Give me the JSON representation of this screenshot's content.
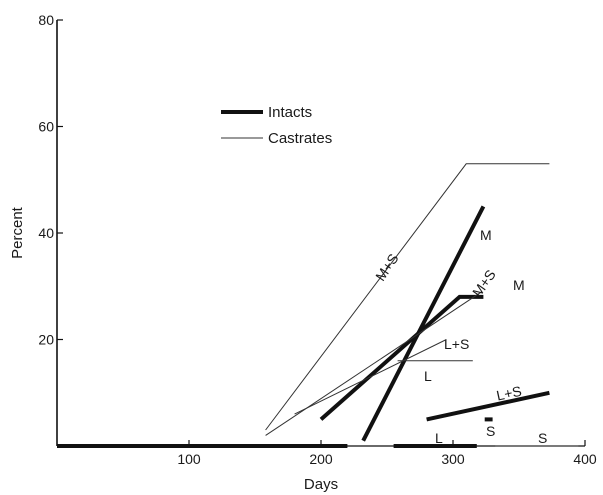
{
  "chart_data": {
    "type": "line",
    "title": "",
    "xlabel": "Days",
    "ylabel": "Percent",
    "xlim": [
      0,
      400
    ],
    "ylim": [
      0,
      80
    ],
    "x_ticks": [
      100,
      200,
      300,
      400
    ],
    "y_ticks": [
      20,
      40,
      60,
      80
    ],
    "grid": false,
    "legend": {
      "placement": "upper-center",
      "entries": [
        {
          "name": "Intacts",
          "style": "thick"
        },
        {
          "name": "Castrates",
          "style": "thin"
        }
      ]
    },
    "series": [
      {
        "group": "Intacts",
        "label": "M",
        "points": [
          [
            232,
            1
          ],
          [
            323,
            45
          ]
        ]
      },
      {
        "group": "Intacts",
        "label": "M+S",
        "points": [
          [
            200,
            5
          ],
          [
            305,
            28
          ],
          [
            323,
            28
          ]
        ]
      },
      {
        "group": "Intacts",
        "label": "L+S",
        "points": [
          [
            280,
            5
          ],
          [
            373,
            10
          ]
        ]
      },
      {
        "group": "Intacts",
        "label": "L",
        "points": [
          [
            255,
            0
          ],
          [
            318,
            0
          ]
        ]
      },
      {
        "group": "Intacts",
        "label": "S",
        "points": [
          [
            324,
            5
          ],
          [
            330,
            5
          ]
        ]
      },
      {
        "group": "Intacts",
        "label": "",
        "points": [
          [
            0,
            0
          ],
          [
            220,
            0
          ]
        ]
      },
      {
        "group": "Castrates",
        "label": "M+S",
        "points": [
          [
            158,
            3
          ],
          [
            310,
            53
          ],
          [
            373,
            53
          ]
        ]
      },
      {
        "group": "Castrates",
        "label": "M",
        "points": [
          [
            158,
            2
          ],
          [
            322,
            29
          ]
        ]
      },
      {
        "group": "Castrates",
        "label": "L+S",
        "points": [
          [
            180,
            6
          ],
          [
            295,
            20
          ]
        ]
      },
      {
        "group": "Castrates",
        "label": "L",
        "points": [
          [
            258,
            16
          ],
          [
            315,
            16
          ]
        ]
      },
      {
        "group": "Castrates",
        "label": "S",
        "points": [
          [
            332,
            0
          ],
          [
            395,
            0
          ]
        ]
      }
    ],
    "annotations": [
      "M+S",
      "M",
      "M+S",
      "M",
      "L+S",
      "L",
      "L+S",
      "L",
      "S",
      "S"
    ]
  }
}
